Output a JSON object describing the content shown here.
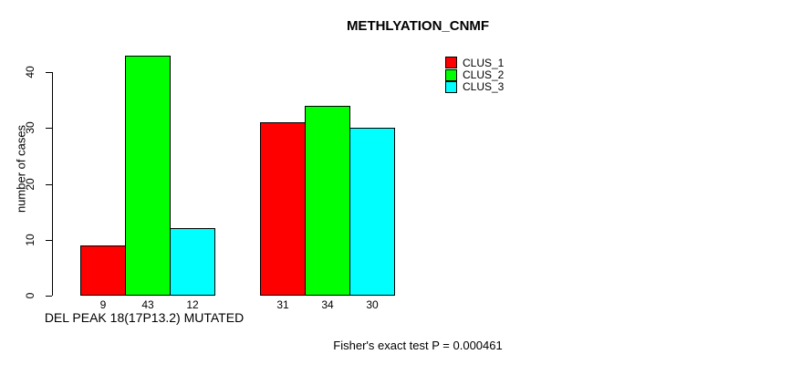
{
  "chart_data": {
    "type": "bar",
    "title": "METHLYATION_CNMF",
    "ylabel": "number of cases",
    "footnote": "Fisher's exact test P = 0.000461",
    "categories": [
      "DEL PEAK 18(17P13.2) MUTATED",
      ""
    ],
    "series": [
      {
        "name": "CLUS_1",
        "color": "#ff0000",
        "values": [
          9,
          31
        ]
      },
      {
        "name": "CLUS_2",
        "color": "#00ff00",
        "values": [
          43,
          34
        ]
      },
      {
        "name": "CLUS_3",
        "color": "#00ffff",
        "values": [
          12,
          30
        ]
      }
    ],
    "yticks": [
      0,
      10,
      20,
      30,
      40
    ],
    "ylim": [
      0,
      43
    ],
    "grid": false,
    "bar_value_labels_shown": true,
    "legend": {
      "position": "top-right",
      "entries": [
        "CLUS_1",
        "CLUS_2",
        "CLUS_3"
      ]
    },
    "colors": {
      "background": "#ffffff",
      "axis": "#000000",
      "text": "#000000"
    }
  }
}
